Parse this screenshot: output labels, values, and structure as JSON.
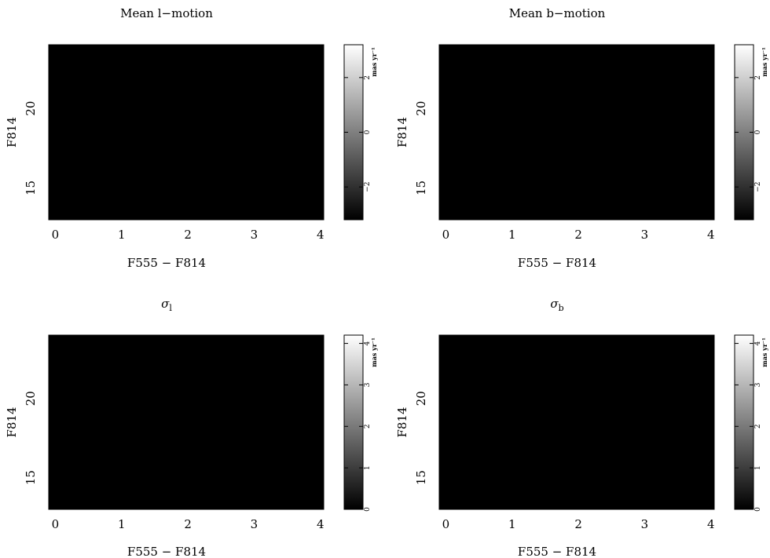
{
  "chart_data": [
    {
      "type": "heatmap",
      "title": "Mean l−motion",
      "title_sub": "",
      "xlabel": "F555 − F814",
      "ylabel": "F814",
      "xlim": [
        -0.1,
        4.05
      ],
      "ylim": [
        24.0,
        13.0
      ],
      "x_ticks": [
        0,
        1,
        2,
        3,
        4
      ],
      "y_ticks": [
        15,
        20
      ],
      "colorbar": {
        "label": "mas yr⁻¹",
        "range": [
          -3.2,
          3.2
        ],
        "ticks": [
          -2,
          0,
          2
        ],
        "tick_labels": [
          "−2",
          "0",
          "2"
        ],
        "cmap": "grayscale"
      },
      "data_description": "2D histogram of mean l-motion per color-magnitude bin; populated region from color ~1 to ~4 and F814 ~15 to ~23, background black",
      "seed": 11,
      "kind": "mean"
    },
    {
      "type": "heatmap",
      "title": "Mean b−motion",
      "title_sub": "",
      "xlabel": "F555 − F814",
      "ylabel": "F814",
      "xlim": [
        -0.1,
        4.05
      ],
      "ylim": [
        24.0,
        13.0
      ],
      "x_ticks": [
        0,
        1,
        2,
        3,
        4
      ],
      "y_ticks": [
        15,
        20
      ],
      "colorbar": {
        "label": "mas yr⁻¹",
        "range": [
          -3.2,
          3.2
        ],
        "ticks": [
          -2,
          0,
          2
        ],
        "tick_labels": [
          "−2",
          "0",
          "2"
        ],
        "cmap": "grayscale"
      },
      "data_description": "2D histogram of mean b-motion per color-magnitude bin",
      "seed": 23,
      "kind": "mean"
    },
    {
      "type": "heatmap",
      "title": "σ",
      "title_sub": "l",
      "xlabel": "F555 − F814",
      "ylabel": "F814",
      "xlim": [
        -0.1,
        4.05
      ],
      "ylim": [
        24.0,
        13.0
      ],
      "x_ticks": [
        0,
        1,
        2,
        3,
        4
      ],
      "y_ticks": [
        15,
        20
      ],
      "colorbar": {
        "label": "mas yr⁻¹",
        "range": [
          0,
          4.2
        ],
        "ticks": [
          0,
          1,
          2,
          3,
          4
        ],
        "tick_labels": [
          "0",
          "1",
          "2",
          "3",
          "4"
        ],
        "cmap": "grayscale"
      },
      "data_description": "2D histogram of l-motion dispersion per color-magnitude bin",
      "seed": 37,
      "kind": "sigma"
    },
    {
      "type": "heatmap",
      "title": "σ",
      "title_sub": "b",
      "xlabel": "F555 − F814",
      "ylabel": "F814",
      "xlim": [
        -0.1,
        4.05
      ],
      "ylim": [
        24.0,
        13.0
      ],
      "x_ticks": [
        0,
        1,
        2,
        3,
        4
      ],
      "y_ticks": [
        15,
        20
      ],
      "colorbar": {
        "label": "mas yr⁻¹",
        "range": [
          0,
          4.2
        ],
        "ticks": [
          0,
          1,
          2,
          3,
          4
        ],
        "tick_labels": [
          "0",
          "1",
          "2",
          "3",
          "4"
        ],
        "cmap": "grayscale"
      },
      "data_description": "2D histogram of b-motion dispersion per color-magnitude bin",
      "seed": 53,
      "kind": "sigma"
    }
  ]
}
